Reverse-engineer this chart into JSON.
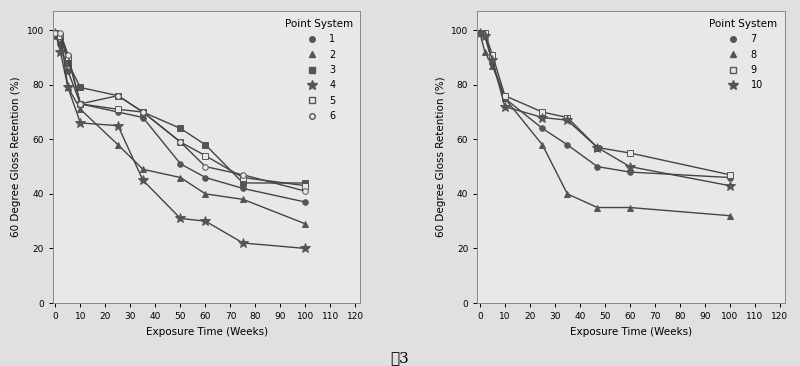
{
  "left_series": {
    "1": {
      "x": [
        0,
        2,
        5,
        10,
        25,
        35,
        50,
        60,
        75,
        100
      ],
      "y": [
        98,
        95,
        85,
        73,
        70,
        68,
        51,
        46,
        42,
        37
      ],
      "marker": "o",
      "filled": true,
      "label": "1"
    },
    "2": {
      "x": [
        0,
        2,
        5,
        10,
        25,
        35,
        50,
        60,
        75,
        100
      ],
      "y": [
        99,
        98,
        79,
        71,
        58,
        49,
        46,
        40,
        38,
        29
      ],
      "marker": "^",
      "filled": true,
      "label": "2"
    },
    "3": {
      "x": [
        0,
        2,
        5,
        10,
        25,
        35,
        50,
        60,
        75,
        100
      ],
      "y": [
        99,
        98,
        88,
        79,
        76,
        70,
        64,
        58,
        44,
        44
      ],
      "marker": "s",
      "filled": true,
      "label": "3"
    },
    "4": {
      "x": [
        0,
        2,
        5,
        10,
        25,
        35,
        50,
        60,
        75,
        100
      ],
      "y": [
        99,
        92,
        79,
        66,
        65,
        45,
        31,
        30,
        22,
        20
      ],
      "marker": "*",
      "filled": true,
      "label": "4"
    },
    "5": {
      "x": [
        0,
        2,
        5,
        10,
        25,
        35,
        50,
        60,
        75,
        100
      ],
      "y": [
        99,
        98,
        90,
        73,
        71,
        70,
        59,
        54,
        46,
        43
      ],
      "marker": "s",
      "filled": false,
      "label": "5"
    },
    "6": {
      "x": [
        0,
        2,
        5,
        10,
        25,
        35,
        50,
        60,
        75,
        100
      ],
      "y": [
        99,
        99,
        91,
        73,
        76,
        70,
        59,
        50,
        47,
        41
      ],
      "marker": "o",
      "filled": false,
      "label": "6"
    }
  },
  "right_series": {
    "7": {
      "x": [
        0,
        2,
        5,
        10,
        25,
        35,
        47,
        60,
        100
      ],
      "y": [
        99,
        98,
        88,
        75,
        64,
        58,
        50,
        48,
        46
      ],
      "marker": "o",
      "filled": true,
      "label": "7"
    },
    "8": {
      "x": [
        0,
        2,
        5,
        10,
        25,
        35,
        47,
        60,
        100
      ],
      "y": [
        99,
        92,
        87,
        75,
        58,
        40,
        35,
        35,
        32
      ],
      "marker": "^",
      "filled": true,
      "label": "8"
    },
    "9": {
      "x": [
        0,
        2,
        5,
        10,
        25,
        35,
        47,
        60,
        100
      ],
      "y": [
        99,
        99,
        91,
        76,
        70,
        68,
        57,
        55,
        47
      ],
      "marker": "s",
      "filled": false,
      "label": "9"
    },
    "10": {
      "x": [
        0,
        2,
        5,
        10,
        25,
        35,
        47,
        60,
        100
      ],
      "y": [
        99,
        98,
        89,
        72,
        68,
        67,
        57,
        50,
        43
      ],
      "marker": "*",
      "filled": true,
      "label": "10"
    }
  },
  "line_color": "#444444",
  "marker_color": "#555555",
  "xlabel": "Exposure Time (Weeks)",
  "ylabel": "60 Degree Gloss Retention (%)",
  "left_legend_title": "Point System",
  "right_legend_title": "Point System",
  "figure_label": "图3",
  "ylim": [
    0,
    107
  ],
  "xlim": [
    -1,
    122
  ],
  "yticks": [
    0,
    20,
    40,
    60,
    80,
    100
  ],
  "xticks": [
    0,
    10,
    20,
    30,
    40,
    50,
    60,
    70,
    80,
    90,
    100,
    110,
    120
  ],
  "bg_color": "#e8e8e8",
  "fig_bg_color": "#e0e0e0",
  "markersize": 4,
  "linewidth": 1.0
}
